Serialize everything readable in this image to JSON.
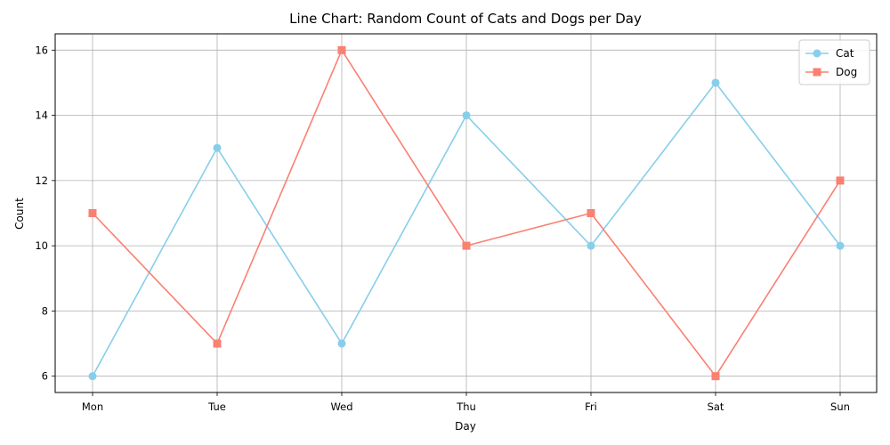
{
  "chart_data": {
    "type": "line",
    "title": "Line Chart: Random Count of Cats and Dogs per Day",
    "xlabel": "Day",
    "ylabel": "Count",
    "categories": [
      "Mon",
      "Tue",
      "Wed",
      "Thu",
      "Fri",
      "Sat",
      "Sun"
    ],
    "ylim": [
      5.5,
      16.5
    ],
    "yticks": [
      6,
      8,
      10,
      12,
      14,
      16
    ],
    "grid": true,
    "legend_position": "top-right",
    "series": [
      {
        "name": "Cat",
        "values": [
          6,
          13,
          7,
          14,
          10,
          15,
          10
        ],
        "color": "#87CEEB",
        "marker": "circle"
      },
      {
        "name": "Dog",
        "values": [
          11,
          7,
          16,
          10,
          11,
          6,
          12
        ],
        "color": "#FA8072",
        "marker": "square"
      }
    ]
  }
}
